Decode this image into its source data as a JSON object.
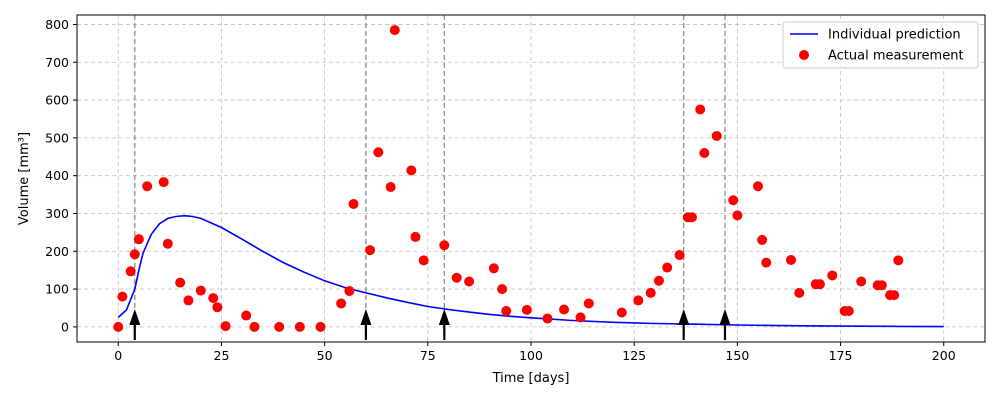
{
  "chart_data": {
    "type": "line+scatter",
    "title": "",
    "xlabel": "Time [days]",
    "ylabel": "Volume [mm³]",
    "xlim": [
      -10,
      210
    ],
    "ylim": [
      -40,
      825
    ],
    "xticks": [
      0,
      25,
      50,
      75,
      100,
      125,
      150,
      175,
      200
    ],
    "yticks": [
      0,
      100,
      200,
      300,
      400,
      500,
      600,
      700,
      800
    ],
    "grid": true,
    "legend_position": "top-right",
    "series": [
      {
        "name": "Individual prediction",
        "kind": "line",
        "color": "#0000ff",
        "x": [
          0,
          2,
          4,
          5,
          6,
          8,
          10,
          12,
          14,
          16,
          17,
          18,
          20,
          25,
          30,
          35,
          40,
          45,
          50,
          55,
          60,
          65,
          70,
          75,
          80,
          85,
          90,
          95,
          100,
          110,
          120,
          130,
          140,
          150,
          160,
          170,
          180,
          190,
          200
        ],
        "y": [
          25,
          45,
          100,
          150,
          195,
          245,
          273,
          287,
          292,
          294,
          293,
          292,
          287,
          263,
          232,
          200,
          170,
          145,
          122,
          104,
          90,
          77,
          65,
          54,
          46,
          39,
          33,
          28,
          24,
          17,
          12,
          9,
          7,
          5,
          3.5,
          2.5,
          1.8,
          1.2,
          0.8
        ]
      },
      {
        "name": "Actual measurement",
        "kind": "scatter",
        "color": "#ff0000",
        "x": [
          0,
          1,
          3,
          4,
          5,
          7,
          11,
          12,
          15,
          17,
          20,
          23,
          24,
          26,
          31,
          33,
          39,
          44,
          49,
          54,
          56,
          57,
          61,
          63,
          66,
          67,
          71,
          72,
          74,
          79,
          82,
          85,
          91,
          93,
          94,
          99,
          104,
          108,
          112,
          114,
          122,
          126,
          129,
          131,
          133,
          136,
          138,
          139,
          141,
          142,
          145,
          149,
          150,
          155,
          156,
          157,
          163,
          165,
          169,
          170,
          173,
          176,
          177,
          180,
          184,
          185,
          187,
          188,
          189
        ],
        "y": [
          0,
          80,
          147,
          192,
          232,
          372,
          383,
          220,
          117,
          70,
          96,
          76,
          52,
          2,
          30,
          0,
          0,
          0,
          0,
          62,
          95,
          325,
          203,
          462,
          370,
          785,
          414,
          238,
          176,
          216,
          130,
          120,
          155,
          100,
          42,
          45,
          22,
          46,
          25,
          62,
          38,
          70,
          90,
          122,
          157,
          190,
          290,
          290,
          575,
          460,
          505,
          335,
          295,
          372,
          230,
          170,
          177,
          90,
          113,
          113,
          136,
          42,
          42,
          120,
          110,
          110,
          84,
          84,
          176
        ]
      }
    ],
    "dosing_days": [
      4,
      60,
      79,
      137,
      147
    ]
  },
  "colors": {
    "grid": "#b0b0b0",
    "dose_line": "#808080",
    "arrow": "#000000"
  }
}
